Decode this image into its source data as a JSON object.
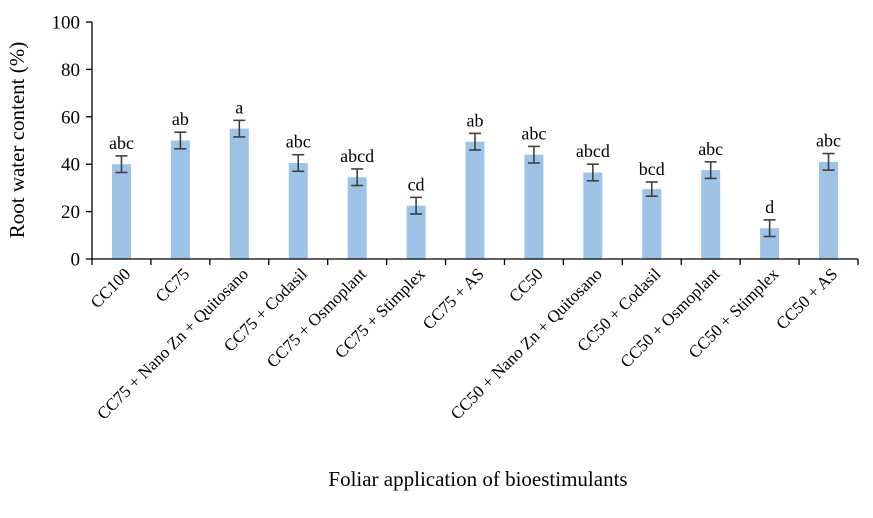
{
  "chart_data": {
    "type": "bar",
    "title": "",
    "xlabel": "Foliar application of bioestimulants",
    "ylabel": "Root water content (%)",
    "ylim": [
      0,
      100
    ],
    "yticks": [
      0,
      20,
      40,
      60,
      80,
      100
    ],
    "grid": false,
    "legend": "none",
    "bar_color": "#9dc3e6",
    "errorbar_color": "#404040",
    "categories": [
      "CC100",
      "CC75",
      "CC75 + Nano Zn + Quitosano",
      "CC75 + Codasil",
      "CC75 + Osmoplant",
      "CC75 + Stimplex",
      "CC75 + AS",
      "CC50",
      "CC50 + Nano Zn + Quitosano",
      "CC50 + Codasil",
      "CC50 + Osmoplant",
      "CC50 + Stimplex",
      "CC50 + AS"
    ],
    "values": [
      40,
      50,
      55,
      40.5,
      34.5,
      22.5,
      49.5,
      44,
      36.5,
      29.5,
      37.5,
      13,
      41
    ],
    "errors": [
      3.5,
      3.5,
      3.5,
      3.5,
      3.5,
      3.5,
      3.5,
      3.5,
      3.5,
      3,
      3.5,
      3.5,
      3.5
    ],
    "significance_letters": [
      "abc",
      "ab",
      "a",
      "abc",
      "abcd",
      "cd",
      "ab",
      "abc",
      "abcd",
      "bcd",
      "abc",
      "d",
      "abc"
    ]
  }
}
